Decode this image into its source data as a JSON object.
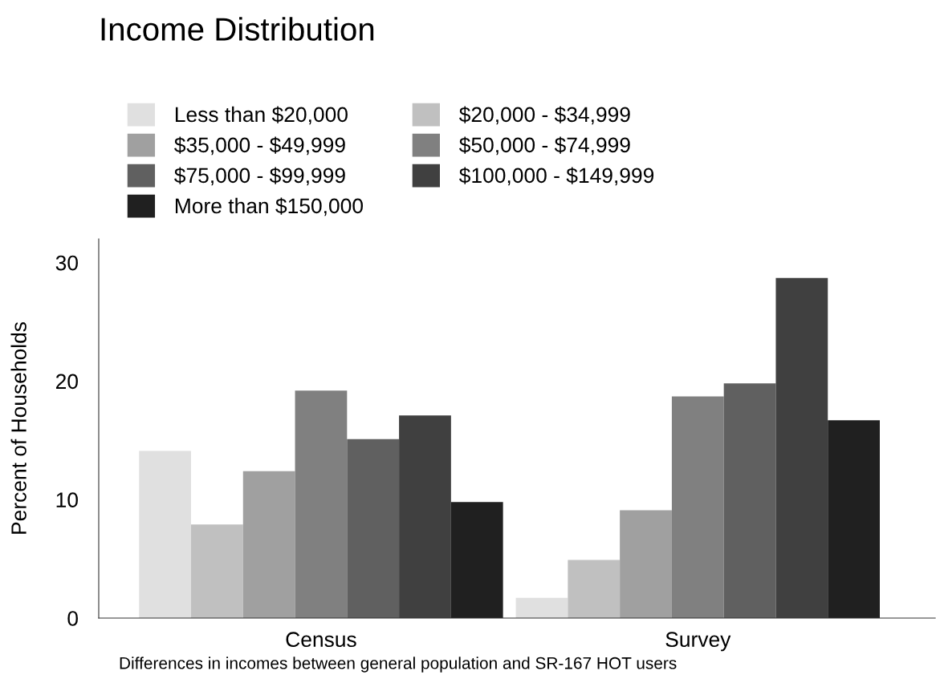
{
  "chart_data": {
    "type": "bar",
    "title": "Income Distribution",
    "ylabel": "Percent of Households",
    "categories": [
      "Census",
      "Survey"
    ],
    "series": [
      {
        "name": "Less than $20,000",
        "color": "#e0e0e0",
        "values": [
          14.1,
          1.7
        ]
      },
      {
        "name": "$20,000 - $34,999",
        "color": "#c0c0c0",
        "values": [
          7.9,
          4.9
        ]
      },
      {
        "name": "$35,000 - $49,999",
        "color": "#a0a0a0",
        "values": [
          12.4,
          9.1
        ]
      },
      {
        "name": "$50,000 - $74,999",
        "color": "#808080",
        "values": [
          19.2,
          18.7
        ]
      },
      {
        "name": "$75,000 - $99,999",
        "color": "#606060",
        "values": [
          15.1,
          19.8
        ]
      },
      {
        "name": "$100,000 - $149,999",
        "color": "#404040",
        "values": [
          17.1,
          28.7
        ]
      },
      {
        "name": "More than $150,000",
        "color": "#202020",
        "values": [
          9.8,
          16.7
        ]
      }
    ],
    "ylim": [
      0,
      32
    ],
    "yticks": [
      0,
      10,
      20,
      30
    ],
    "grid": false,
    "legend": "top left",
    "annotations": [
      "Differences in incomes between general population and SR-167 HOT users"
    ]
  }
}
